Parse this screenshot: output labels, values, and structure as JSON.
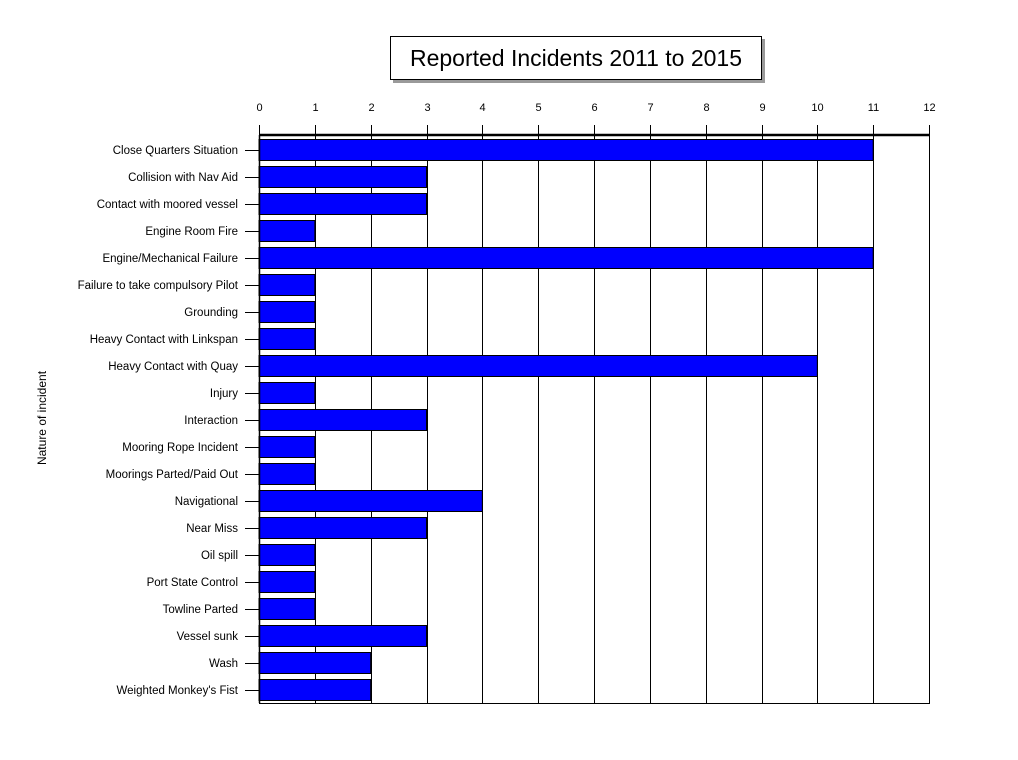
{
  "chart_data": {
    "type": "bar",
    "orientation": "horizontal",
    "title": "Reported Incidents 2011 to 2015",
    "xlabel": "",
    "ylabel": "Nature of incident",
    "xlim": [
      0,
      12
    ],
    "x_ticks": [
      0,
      1,
      2,
      3,
      4,
      5,
      6,
      7,
      8,
      9,
      10,
      11,
      12
    ],
    "x_axis_position": "top",
    "grid": true,
    "bar_color": "#0000FF",
    "categories": [
      "Close Quarters Situation",
      "Collision with Nav Aid",
      "Contact with moored vessel",
      "Engine Room Fire",
      "Engine/Mechanical Failure",
      "Failure to take compulsory  Pilot",
      "Grounding",
      "Heavy Contact with Linkspan",
      "Heavy Contact with Quay",
      "Injury",
      "Interaction",
      "Mooring Rope Incident",
      "Moorings Parted/Paid Out",
      "Navigational",
      "Near Miss",
      "Oil spill",
      "Port State Control",
      "Towline Parted",
      "Vessel sunk",
      "Wash",
      "Weighted Monkey's Fist"
    ],
    "values": [
      11,
      3,
      3,
      1,
      11,
      1,
      1,
      1,
      10,
      1,
      3,
      1,
      1,
      4,
      3,
      1,
      1,
      1,
      3,
      2,
      2
    ]
  }
}
